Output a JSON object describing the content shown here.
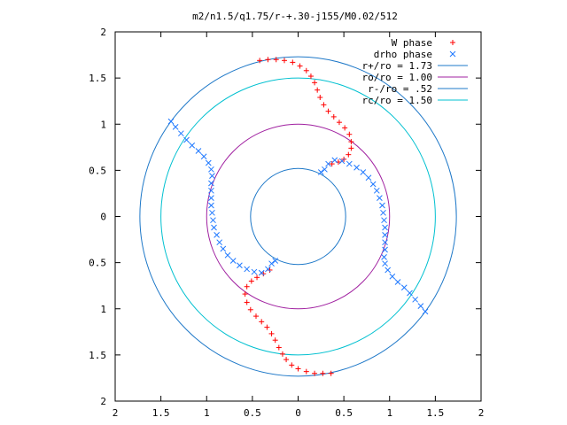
{
  "chart_data": {
    "type": "scatter",
    "title": "m2/n1.5/q1.75/r-+.30-j155/M0.02/512",
    "xlabel": "",
    "ylabel": "",
    "xlim": [
      -2,
      2
    ],
    "ylim": [
      -2,
      2
    ],
    "x_ticks": [
      -2,
      -1.5,
      -1,
      -0.5,
      0,
      0.5,
      1,
      1.5,
      2
    ],
    "y_ticks": [
      -2,
      -1.5,
      -1,
      -0.5,
      0,
      0.5,
      1,
      1.5,
      2
    ],
    "x_tick_labels": [
      "2",
      "1.5",
      "1",
      "0.5",
      "0",
      "0.5",
      "1",
      "1.5",
      "2"
    ],
    "y_tick_labels": [
      "2",
      "1.5",
      "1",
      "0.5",
      "0",
      "0.5",
      "1",
      "1.5",
      "2"
    ],
    "grid": false,
    "legend_position": "top-right",
    "series": [
      {
        "name": "W phase",
        "marker": "plus",
        "color": "#ff0000",
        "points": [
          [
            -0.42,
            1.69
          ],
          [
            -0.33,
            1.7
          ],
          [
            -0.24,
            1.7
          ],
          [
            -0.15,
            1.69
          ],
          [
            -0.06,
            1.67
          ],
          [
            0.02,
            1.63
          ],
          [
            0.09,
            1.58
          ],
          [
            0.14,
            1.52
          ],
          [
            0.18,
            1.45
          ],
          [
            0.21,
            1.37
          ],
          [
            0.24,
            1.29
          ],
          [
            0.28,
            1.21
          ],
          [
            0.33,
            1.14
          ],
          [
            0.39,
            1.08
          ],
          [
            0.45,
            1.02
          ],
          [
            0.51,
            0.96
          ],
          [
            0.56,
            0.89
          ],
          [
            0.58,
            0.81
          ],
          [
            0.58,
            0.74
          ],
          [
            0.55,
            0.67
          ],
          [
            0.5,
            0.62
          ],
          [
            0.44,
            0.59
          ],
          [
            0.37,
            0.57
          ],
          [
            0.36,
            -1.7
          ],
          [
            0.27,
            -1.7
          ],
          [
            0.18,
            -1.7
          ],
          [
            0.09,
            -1.68
          ],
          [
            0.0,
            -1.65
          ],
          [
            -0.07,
            -1.61
          ],
          [
            -0.13,
            -1.55
          ],
          [
            -0.17,
            -1.49
          ],
          [
            -0.21,
            -1.42
          ],
          [
            -0.25,
            -1.34
          ],
          [
            -0.29,
            -1.27
          ],
          [
            -0.34,
            -1.2
          ],
          [
            -0.4,
            -1.14
          ],
          [
            -0.46,
            -1.08
          ],
          [
            -0.52,
            -1.01
          ],
          [
            -0.56,
            -0.93
          ],
          [
            -0.58,
            -0.84
          ],
          [
            -0.56,
            -0.76
          ],
          [
            -0.51,
            -0.7
          ],
          [
            -0.45,
            -0.66
          ],
          [
            -0.38,
            -0.62
          ],
          [
            -0.31,
            -0.58
          ]
        ]
      },
      {
        "name": "drho phase",
        "marker": "cross",
        "color": "#1e78ff",
        "points": [
          [
            -1.39,
            1.03
          ],
          [
            -1.34,
            0.97
          ],
          [
            -1.28,
            0.9
          ],
          [
            -1.22,
            0.83
          ],
          [
            -1.16,
            0.77
          ],
          [
            -1.09,
            0.71
          ],
          [
            -1.03,
            0.65
          ],
          [
            -0.98,
            0.58
          ],
          [
            -0.95,
            0.51
          ],
          [
            -0.94,
            0.44
          ],
          [
            -0.95,
            0.36
          ],
          [
            -0.95,
            0.28
          ],
          [
            -0.95,
            0.2
          ],
          [
            -0.95,
            0.12
          ],
          [
            -0.94,
            0.04
          ],
          [
            -0.93,
            -0.04
          ],
          [
            -0.92,
            -0.12
          ],
          [
            -0.89,
            -0.2
          ],
          [
            -0.86,
            -0.28
          ],
          [
            -0.82,
            -0.35
          ],
          [
            -0.77,
            -0.42
          ],
          [
            -0.71,
            -0.48
          ],
          [
            -0.64,
            -0.53
          ],
          [
            -0.56,
            -0.57
          ],
          [
            -0.48,
            -0.6
          ],
          [
            -0.4,
            -0.61
          ],
          [
            -0.33,
            -0.57
          ],
          [
            -0.29,
            -0.51
          ],
          [
            -0.25,
            -0.48
          ],
          [
            1.39,
            -1.03
          ],
          [
            1.34,
            -0.97
          ],
          [
            1.28,
            -0.9
          ],
          [
            1.22,
            -0.83
          ],
          [
            1.16,
            -0.77
          ],
          [
            1.09,
            -0.71
          ],
          [
            1.03,
            -0.65
          ],
          [
            0.98,
            -0.58
          ],
          [
            0.95,
            -0.51
          ],
          [
            0.94,
            -0.44
          ],
          [
            0.95,
            -0.36
          ],
          [
            0.95,
            -0.28
          ],
          [
            0.95,
            -0.2
          ],
          [
            0.95,
            -0.12
          ],
          [
            0.94,
            -0.04
          ],
          [
            0.93,
            0.04
          ],
          [
            0.92,
            0.12
          ],
          [
            0.89,
            0.2
          ],
          [
            0.86,
            0.28
          ],
          [
            0.82,
            0.35
          ],
          [
            0.77,
            0.42
          ],
          [
            0.71,
            0.48
          ],
          [
            0.64,
            0.53
          ],
          [
            0.56,
            0.57
          ],
          [
            0.48,
            0.6
          ],
          [
            0.4,
            0.61
          ],
          [
            0.33,
            0.57
          ],
          [
            0.29,
            0.51
          ],
          [
            0.25,
            0.48
          ]
        ]
      },
      {
        "name": "r+/ro = 1.73",
        "type": "circle",
        "radius": 1.73,
        "color": "#1e78c8"
      },
      {
        "name": "ro/ro = 1.00",
        "type": "circle",
        "radius": 1.0,
        "color": "#a020a0"
      },
      {
        "name": "r-/ro = .52",
        "type": "circle",
        "radius": 0.52,
        "color": "#1e78c8"
      },
      {
        "name": "rc/ro = 1.50",
        "type": "circle",
        "radius": 1.5,
        "color": "#00c0d0"
      }
    ]
  }
}
